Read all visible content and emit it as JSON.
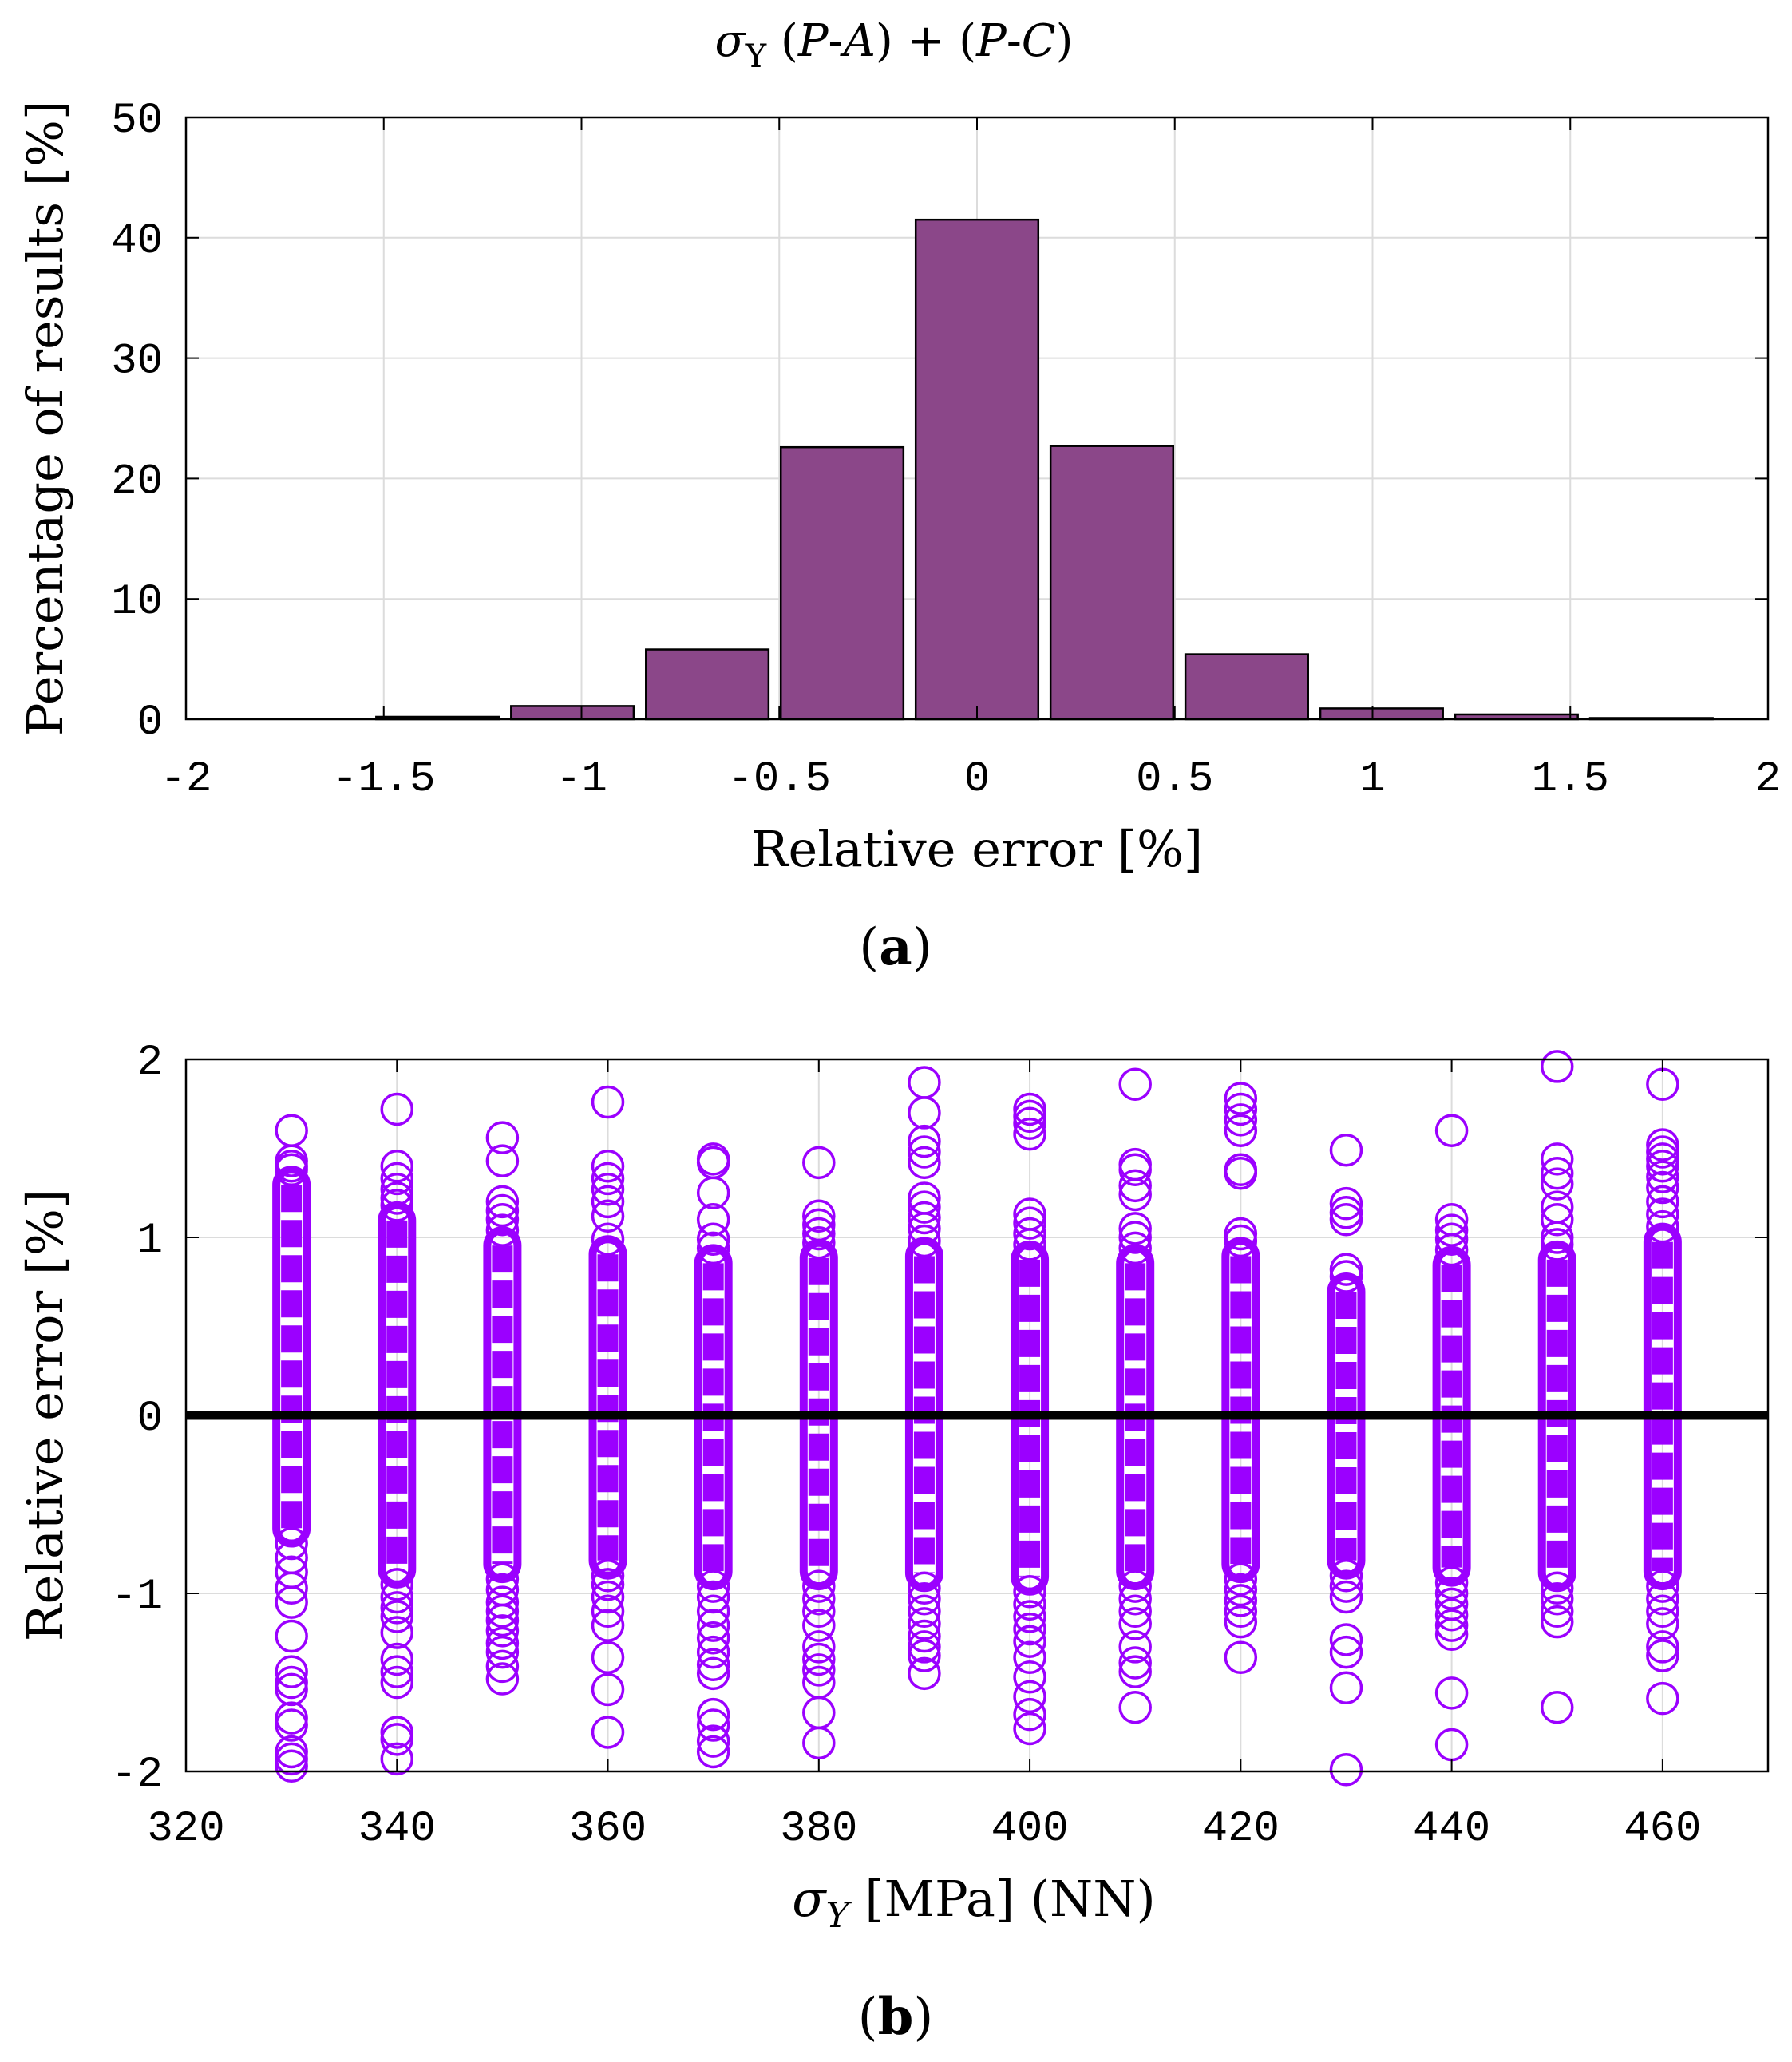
{
  "chart_data": [
    {
      "id": "a",
      "type": "bar",
      "title": {
        "sigma": "σ",
        "sub": "Y",
        "rest_prefix": " (",
        "p1": "P",
        "dash1": "-",
        "a": "A",
        "mid": ") + (",
        "p2": "P",
        "dash2": "-",
        "c": "C",
        "close": ")"
      },
      "xlabel": "Relative error [%]",
      "ylabel": "Percentage of results [%]",
      "caption_open": "(",
      "caption_letter": "a",
      "caption_close": ")",
      "xlim": [
        -2,
        2
      ],
      "ylim": [
        0,
        50
      ],
      "xticks": [
        -2,
        -1.5,
        -1,
        -0.5,
        0,
        0.5,
        1,
        1.5,
        2
      ],
      "xtick_labels": [
        "-2",
        "-1.5",
        "-1",
        "-0.5",
        "0",
        "0.5",
        "1",
        "1.5",
        "2"
      ],
      "yticks": [
        0,
        10,
        20,
        30,
        40,
        50
      ],
      "ytick_labels": [
        "0",
        "10",
        "20",
        "30",
        "40",
        "50"
      ],
      "grid": true,
      "bar_width": 0.31,
      "x": [
        -1.364,
        -1.023,
        -0.682,
        -0.341,
        0,
        0.341,
        0.682,
        1.023,
        1.364,
        1.705
      ],
      "values": [
        0.2,
        1.1,
        5.8,
        22.6,
        41.5,
        22.7,
        5.4,
        0.9,
        0.4,
        0.1
      ],
      "bar_color": "#8B4789",
      "edge_color": "#000000"
    },
    {
      "id": "b",
      "type": "scatter",
      "xlabel": {
        "sigma": "σ",
        "sub": "Y",
        "rest": " [MPa] (NN)"
      },
      "ylabel": "Relative error [%]",
      "caption_open": "(",
      "caption_letter": "b",
      "caption_close": ")",
      "xlim": [
        320,
        470
      ],
      "ylim": [
        -2,
        2
      ],
      "xticks": [
        320,
        340,
        360,
        380,
        400,
        420,
        440,
        460
      ],
      "xtick_labels": [
        "320",
        "340",
        "360",
        "380",
        "400",
        "420",
        "440",
        "460"
      ],
      "yticks": [
        -2,
        -1,
        0,
        1,
        2
      ],
      "ytick_labels": [
        "-2",
        "-1",
        "0",
        "1",
        "2"
      ],
      "grid": true,
      "marker": "circle-open",
      "marker_color": "#9B00FF",
      "reference_line": {
        "y": 0,
        "color": "#000000"
      },
      "series": [
        {
          "x": 330,
          "y": [
            1.6,
            1.43,
            1.4,
            1.38,
            -1.97,
            -1.93,
            -1.89,
            -1.74,
            -1.7,
            -1.54,
            -1.5,
            -1.44,
            -1.24,
            -1.05,
            -0.97,
            -0.88,
            -0.8,
            -0.72
          ]
        },
        {
          "x": 340,
          "y": [
            1.72,
            1.4,
            1.33,
            1.27,
            1.22,
            1.18,
            -1.93,
            -1.82,
            -1.78,
            -1.5,
            -1.44,
            -1.37,
            -1.22,
            -1.13,
            -1.08,
            -1.02,
            -0.95
          ]
        },
        {
          "x": 350,
          "y": [
            1.56,
            1.43,
            1.2,
            1.15,
            1.1,
            1.04,
            -1.48,
            -1.41,
            -1.33,
            -1.28,
            -1.21,
            -1.15,
            -1.1,
            -1.05,
            -0.98,
            -0.92
          ]
        },
        {
          "x": 360,
          "y": [
            1.76,
            1.4,
            1.33,
            1.27,
            1.2,
            1.12,
            0.99,
            -1.78,
            -1.54,
            -1.36,
            -1.18,
            -1.1,
            -1.02,
            -0.95,
            -0.9
          ]
        },
        {
          "x": 370,
          "y": [
            1.44,
            1.42,
            1.25,
            1.1,
            0.99,
            0.94,
            -1.89,
            -1.83,
            -1.74,
            -1.68,
            -1.45,
            -1.4,
            -1.33,
            -1.25,
            -1.18,
            -1.1,
            -1.02,
            -0.96
          ]
        },
        {
          "x": 380,
          "y": [
            1.42,
            1.12,
            1.07,
            1.02,
            0.97,
            -1.84,
            -1.67,
            -1.5,
            -1.43,
            -1.37,
            -1.3,
            -1.18,
            -1.1,
            -1.03,
            -0.96
          ]
        },
        {
          "x": 390,
          "y": [
            1.87,
            1.7,
            1.54,
            1.48,
            1.42,
            1.22,
            1.17,
            1.11,
            1.05,
            0.98,
            -1.45,
            -1.35,
            -1.3,
            -1.24,
            -1.17,
            -1.1,
            -1.03,
            -0.97
          ]
        },
        {
          "x": 400,
          "y": [
            1.72,
            1.68,
            1.64,
            1.58,
            1.13,
            1.08,
            1.02,
            0.96,
            -1.76,
            -1.68,
            -1.58,
            -1.47,
            -1.36,
            -1.27,
            -1.2,
            -1.13,
            -1.06,
            -0.99
          ]
        },
        {
          "x": 410,
          "y": [
            1.86,
            1.41,
            1.38,
            1.29,
            1.24,
            1.05,
            1.0,
            0.94,
            -1.64,
            -1.44,
            -1.39,
            -1.3,
            -1.17,
            -1.1,
            -1.03,
            -0.96
          ]
        },
        {
          "x": 420,
          "y": [
            1.78,
            1.72,
            1.66,
            1.6,
            1.38,
            1.36,
            1.02,
            0.98,
            -1.36,
            -1.16,
            -1.1,
            -1.04,
            -0.98,
            -0.92
          ]
        },
        {
          "x": 430,
          "y": [
            1.49,
            1.19,
            1.14,
            1.1,
            0.82,
            0.78,
            -1.99,
            -1.53,
            -1.33,
            -1.26,
            -1.02,
            -0.96,
            -0.9
          ]
        },
        {
          "x": 440,
          "y": [
            1.6,
            1.1,
            1.04,
            0.99,
            0.93,
            -1.85,
            -1.56,
            -1.23,
            -1.18,
            -1.12,
            -1.06,
            -1.0,
            -0.94
          ]
        },
        {
          "x": 450,
          "y": [
            1.96,
            1.44,
            1.36,
            1.3,
            1.17,
            1.1,
            1.0,
            0.96,
            -1.64,
            -1.16,
            -1.1,
            -1.03,
            -0.97
          ]
        },
        {
          "x": 460,
          "y": [
            1.86,
            1.52,
            1.48,
            1.44,
            1.4,
            1.34,
            1.28,
            1.2,
            1.13,
            1.06,
            -1.59,
            -1.35,
            -1.3,
            -1.17,
            -1.1,
            -1.03,
            -0.96
          ]
        }
      ]
    }
  ]
}
